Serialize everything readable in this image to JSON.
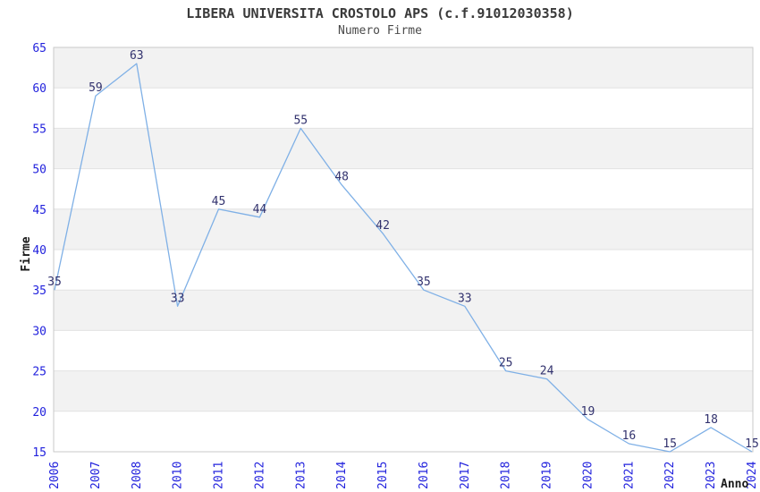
{
  "header": {
    "title": "LIBERA UNIVERSITA CROSTOLO APS (c.f.91012030358)",
    "subtitle": "Numero Firme"
  },
  "chart_data": {
    "type": "line",
    "title": "LIBERA UNIVERSITA CROSTOLO APS (c.f.91012030358)",
    "subtitle": "Numero Firme",
    "xlabel": "Anno",
    "ylabel": "Firme",
    "categories": [
      "2006",
      "2007",
      "2008",
      "2010",
      "2011",
      "2012",
      "2013",
      "2014",
      "2015",
      "2016",
      "2017",
      "2018",
      "2019",
      "2020",
      "2021",
      "2022",
      "2023",
      "2024"
    ],
    "values": [
      35,
      59,
      63,
      33,
      45,
      44,
      55,
      48,
      42,
      35,
      33,
      25,
      24,
      19,
      16,
      15,
      18,
      15
    ],
    "data_labels_visible": true,
    "ylim": [
      15,
      65
    ],
    "yticks": [
      15,
      20,
      25,
      30,
      35,
      40,
      45,
      50,
      55,
      60,
      65
    ],
    "grid": true,
    "legend_position": "none",
    "background_bands": "alternating-horizontal",
    "colors": {
      "line": "#7FB0E6",
      "tick_label": "#2222DD",
      "data_label": "#32326E",
      "band": "#F2F2F2",
      "gridline": "#E2E2E2",
      "plot_border": "#C9C9C9",
      "title": "#3A3A3A",
      "axis_title": "#1A1A1A",
      "background": "#FFFFFF"
    }
  }
}
